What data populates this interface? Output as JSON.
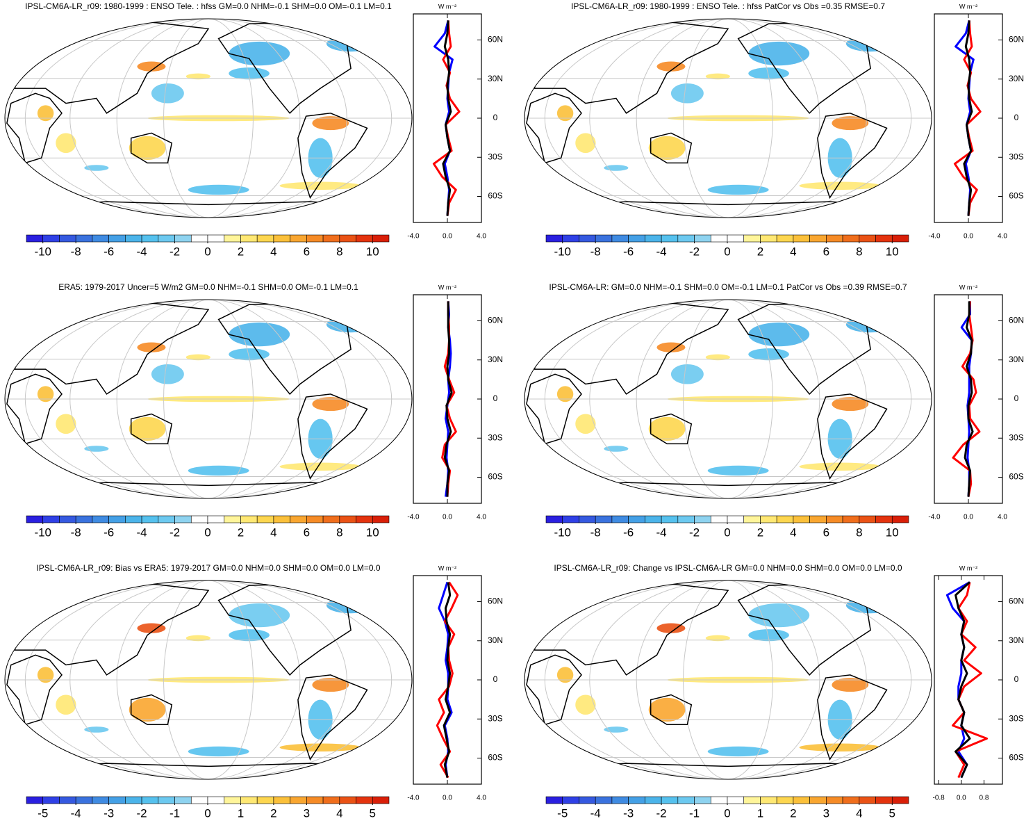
{
  "palette": [
    "#2a1fe0",
    "#2f40e6",
    "#3559e0",
    "#3a72de",
    "#3f8be2",
    "#44a0e6",
    "#4bb4ea",
    "#55c1ee",
    "#6cc9f0",
    "#8ed3f0",
    "#ffffff",
    "#ffffff",
    "#fff59a",
    "#ffe873",
    "#fdd64f",
    "#fbc03a",
    "#f9a630",
    "#f68b26",
    "#f06e1c",
    "#ea5215",
    "#e4330e",
    "#d91f08"
  ],
  "chart_data": [
    {
      "type": "map",
      "title": "IPSL-CM6A-LR_r09: 1980-1999 : ENSO Tele. : hfss GM=0.0 NHM=-0.1 SHM=0.0 OM=-0.1 LM=0.1",
      "clim": [
        -11,
        11
      ],
      "cticks": [
        -10,
        -8,
        -6,
        -4,
        -2,
        0,
        2,
        4,
        6,
        8,
        10
      ],
      "zonal": {
        "unit": "W m⁻²",
        "lat": [
          -75,
          -65,
          -55,
          -45,
          -35,
          -25,
          -15,
          -5,
          5,
          15,
          25,
          35,
          45,
          55,
          65,
          75
        ],
        "xlim": [
          -4,
          4
        ],
        "xticks": [
          {
            "value": -4,
            "label": "-4.0"
          },
          {
            "value": 0,
            "label": "0.0"
          },
          {
            "value": 4,
            "label": "4.0"
          }
        ],
        "ylim": [
          -80,
          80
        ],
        "yticks": [
          {
            "value": 60,
            "label": "60N"
          },
          {
            "value": 30,
            "label": "30N"
          },
          0,
          {
            "value": -30,
            "label": "30S"
          },
          {
            "value": -60,
            "label": "60S"
          }
        ],
        "series": [
          {
            "color": "#0000ff",
            "values": [
              0,
              0.1,
              0.2,
              0.0,
              -0.3,
              0.3,
              0.0,
              -0.2,
              0.2,
              0.0,
              0.1,
              0.2,
              0.6,
              -1.5,
              -0.3,
              0.1
            ]
          },
          {
            "color": "#ff0000",
            "values": [
              0,
              0.2,
              1.0,
              -0.6,
              -1.6,
              0.5,
              0.1,
              -0.2,
              1.4,
              0.3,
              -0.1,
              0.3,
              -0.5,
              0.4,
              0.2,
              0.1
            ]
          },
          {
            "color": "#000000",
            "values": [
              0,
              0.1,
              0.3,
              -0.2,
              -0.5,
              0.3,
              0.0,
              -0.2,
              0.4,
              0.1,
              0.0,
              0.2,
              0.1,
              -0.3,
              0.0,
              0.1
            ]
          }
        ]
      }
    },
    {
      "type": "map",
      "title": "IPSL-CM6A-LR_r09: 1980-1999 : ENSO Tele. : hfss PatCor vs Obs =0.35 RMSE=0.7",
      "clim": [
        -11,
        11
      ],
      "cticks": [
        -10,
        -8,
        -6,
        -4,
        -2,
        0,
        2,
        4,
        6,
        8,
        10
      ],
      "zonal": {
        "unit": "W m⁻²",
        "lat": [
          -75,
          -65,
          -55,
          -45,
          -35,
          -25,
          -15,
          -5,
          5,
          15,
          25,
          35,
          45,
          55,
          65,
          75
        ],
        "xlim": [
          -4,
          4
        ],
        "xticks": [
          {
            "value": -4,
            "label": "-4.0"
          },
          {
            "value": 0,
            "label": "0.0"
          },
          {
            "value": 4,
            "label": "4.0"
          }
        ],
        "ylim": [
          -80,
          80
        ],
        "yticks": [
          {
            "value": 60,
            "label": "60N"
          },
          {
            "value": 30,
            "label": "30N"
          },
          0,
          {
            "value": -30,
            "label": "30S"
          },
          {
            "value": -60,
            "label": "60S"
          }
        ],
        "series": [
          {
            "color": "#0000ff",
            "values": [
              0,
              0.1,
              0.2,
              0.0,
              -0.3,
              0.3,
              0.0,
              -0.2,
              0.2,
              0.0,
              0.1,
              0.2,
              0.6,
              -1.5,
              -0.3,
              0.1
            ]
          },
          {
            "color": "#ff0000",
            "values": [
              0,
              0.2,
              1.0,
              -0.6,
              -1.6,
              0.5,
              0.1,
              -0.2,
              1.4,
              0.3,
              -0.1,
              0.3,
              -0.5,
              0.4,
              0.2,
              0.1
            ]
          },
          {
            "color": "#000000",
            "values": [
              0,
              0.1,
              0.3,
              -0.2,
              -0.5,
              0.3,
              0.0,
              -0.2,
              0.4,
              0.1,
              0.0,
              0.2,
              0.1,
              -0.3,
              0.0,
              0.1
            ]
          }
        ]
      }
    },
    {
      "type": "map",
      "title": "ERA5: 1979-2017 Uncer=5 W/m2 GM=0.0 NHM=-0.1 SHM=0.0 OM=-0.1 LM=0.1",
      "clim": [
        -11,
        11
      ],
      "cticks": [
        -10,
        -8,
        -6,
        -4,
        -2,
        0,
        2,
        4,
        6,
        8,
        10
      ],
      "zonal": {
        "unit": "W m⁻²",
        "lat": [
          -75,
          -65,
          -55,
          -45,
          -35,
          -25,
          -15,
          -5,
          5,
          15,
          25,
          35,
          45,
          55,
          65,
          75
        ],
        "xlim": [
          -4,
          4
        ],
        "xticks": [
          {
            "value": -4,
            "label": "-4.0"
          },
          {
            "value": 0,
            "label": "0.0"
          },
          {
            "value": 4,
            "label": "4.0"
          }
        ],
        "ylim": [
          -80,
          80
        ],
        "yticks": [
          {
            "value": 60,
            "label": "60N"
          },
          {
            "value": 30,
            "label": "30N"
          },
          0,
          {
            "value": -30,
            "label": "30S"
          },
          {
            "value": -60,
            "label": "60S"
          }
        ],
        "series": [
          {
            "color": "#0000ff",
            "values": [
              -0.2,
              0,
              0.1,
              -0.1,
              0,
              0.1,
              -0.2,
              0,
              0.2,
              0.1,
              0.3,
              0.4,
              0.3,
              0.1,
              0.2,
              0.1
            ]
          },
          {
            "color": "#ff0000",
            "values": [
              0,
              0.1,
              0.3,
              -0.6,
              -0.3,
              1.0,
              0.3,
              -0.1,
              0.8,
              0.2,
              -0.3,
              0.1,
              0.2,
              0.2,
              0.1,
              0.1
            ]
          },
          {
            "color": "#000000",
            "values": [
              0,
              0,
              0.2,
              -0.3,
              -0.1,
              0.4,
              0,
              -0.1,
              0.5,
              0.1,
              0,
              0.2,
              0.2,
              0.1,
              0.1,
              0.1
            ]
          }
        ]
      }
    },
    {
      "type": "map",
      "title": "IPSL-CM6A-LR: GM=0.0 NHM=-0.1 SHM=0.0 OM=-0.1 LM=0.1 PatCor vs Obs =0.39 RMSE=0.7",
      "clim": [
        -11,
        11
      ],
      "cticks": [
        -10,
        -8,
        -6,
        -4,
        -2,
        0,
        2,
        4,
        6,
        8,
        10
      ],
      "zonal": {
        "unit": "W m⁻²",
        "lat": [
          -75,
          -65,
          -55,
          -45,
          -35,
          -25,
          -15,
          -5,
          5,
          15,
          25,
          35,
          45,
          55,
          65,
          75
        ],
        "xlim": [
          -4,
          4
        ],
        "xticks": [
          {
            "value": -4,
            "label": "-4.0"
          },
          {
            "value": 0,
            "label": "0.0"
          },
          {
            "value": 4,
            "label": "4.0"
          }
        ],
        "ylim": [
          -80,
          80
        ],
        "yticks": [
          {
            "value": 60,
            "label": "60N"
          },
          {
            "value": 30,
            "label": "30N"
          },
          0,
          {
            "value": -30,
            "label": "30S"
          },
          {
            "value": -60,
            "label": "60S"
          }
        ],
        "series": [
          {
            "color": "#0000ff",
            "values": [
              0,
              0.1,
              0.1,
              -0.1,
              0.0,
              0.1,
              0,
              -0.1,
              0.1,
              0.1,
              0.1,
              0.3,
              0.4,
              -0.8,
              0.2,
              0.2
            ]
          },
          {
            "color": "#ff0000",
            "values": [
              0,
              0.3,
              0.2,
              -1.8,
              -0.6,
              1.3,
              0.2,
              0.1,
              0.9,
              0.6,
              -0.7,
              0.2,
              0.5,
              0.3,
              0.1,
              0.2
            ]
          },
          {
            "color": "#000000",
            "values": [
              0,
              0.1,
              0.2,
              -0.4,
              -0.2,
              0.5,
              0,
              0,
              0.4,
              0.3,
              -0.2,
              0.3,
              0.4,
              -0.2,
              0.1,
              0.1
            ]
          }
        ]
      }
    },
    {
      "type": "map",
      "title": "IPSL-CM6A-LR_r09: Bias vs ERA5: 1979-2017 GM=0.0 NHM=0.0 SHM=0.0 OM=0.0 LM=0.0",
      "clim": [
        -5.5,
        5.5
      ],
      "cticks": [
        -5,
        -4,
        -3,
        -2,
        -1,
        0,
        1,
        2,
        3,
        4,
        5
      ],
      "zonal": {
        "unit": "W m⁻²",
        "lat": [
          -75,
          -65,
          -55,
          -45,
          -35,
          -25,
          -15,
          -5,
          5,
          15,
          25,
          35,
          45,
          55,
          65,
          75
        ],
        "xlim": [
          -4,
          4
        ],
        "xticks": [
          {
            "value": -4,
            "label": "-4.0"
          },
          {
            "value": 0,
            "label": "0.0"
          },
          {
            "value": 4,
            "label": "4.0"
          }
        ],
        "ylim": [
          -80,
          80
        ],
        "yticks": [
          {
            "value": 60,
            "label": "60N"
          },
          {
            "value": 30,
            "label": "30N"
          },
          0,
          {
            "value": -30,
            "label": "30S"
          },
          {
            "value": -60,
            "label": "60S"
          }
        ],
        "series": [
          {
            "color": "#0000ff",
            "values": [
              0,
              -0.2,
              0.1,
              0,
              -0.3,
              0.5,
              0,
              0.1,
              0.1,
              -0.2,
              0,
              0.1,
              -0.3,
              -1.0,
              -0.5,
              0
            ]
          },
          {
            "color": "#ff0000",
            "values": [
              0.1,
              -0.8,
              0.3,
              -0.5,
              -1.2,
              -0.4,
              -1.0,
              0.2,
              0.6,
              0.2,
              0.1,
              0.8,
              -0.3,
              0.5,
              1.2,
              0.2
            ]
          },
          {
            "color": "#000000",
            "values": [
              0,
              -0.3,
              0.2,
              -0.1,
              -0.4,
              0.3,
              -0.2,
              0.1,
              0.3,
              0,
              0.1,
              0.3,
              -0.1,
              -0.2,
              0.3,
              0.1
            ]
          }
        ]
      }
    },
    {
      "type": "map",
      "title": "IPSL-CM6A-LR_r09: Change vs IPSL-CM6A-LR GM=0.0 NHM=0.0 SHM=0.0 OM=0.0 LM=0.0",
      "clim": [
        -5.5,
        5.5
      ],
      "cticks": [
        -5,
        -4,
        -3,
        -2,
        -1,
        0,
        1,
        2,
        3,
        4,
        5
      ],
      "zonal": {
        "unit": "W m⁻²",
        "lat": [
          -75,
          -65,
          -55,
          -45,
          -35,
          -25,
          -15,
          -5,
          5,
          15,
          25,
          35,
          45,
          55,
          65,
          75
        ],
        "xlim": [
          -0.95,
          1.45
        ],
        "xticks": [
          {
            "value": -0.8,
            "label": "-0.8"
          },
          {
            "value": 0,
            "label": "0.0"
          },
          {
            "value": 0.8,
            "label": "0.8"
          }
        ],
        "ylim": [
          -80,
          80
        ],
        "yticks": [
          {
            "value": 60,
            "label": "60N"
          },
          {
            "value": 30,
            "label": "30N"
          },
          0,
          {
            "value": -30,
            "label": "30S"
          },
          {
            "value": -60,
            "label": "60S"
          }
        ],
        "series": [
          {
            "color": "#0000ff",
            "values": [
              0,
              0.2,
              -0.1,
              0.1,
              0,
              0.1,
              -0.1,
              -0.1,
              0.0,
              0,
              0.1,
              0,
              0.1,
              -0.3,
              -0.5,
              0.3
            ]
          },
          {
            "color": "#ff0000",
            "values": [
              -0.1,
              0.1,
              -0.2,
              0.9,
              -0.3,
              0.1,
              -0.1,
              0.1,
              0.7,
              0.1,
              0.5,
              0.0,
              0.2,
              -0.1,
              0.2,
              0.3
            ]
          },
          {
            "color": "#000000",
            "values": [
              0,
              0.2,
              -0.2,
              0.3,
              0,
              0.1,
              -0.1,
              0,
              0.2,
              0,
              0.1,
              0,
              0.1,
              -0.1,
              -0.2,
              0.3
            ]
          }
        ]
      }
    }
  ]
}
